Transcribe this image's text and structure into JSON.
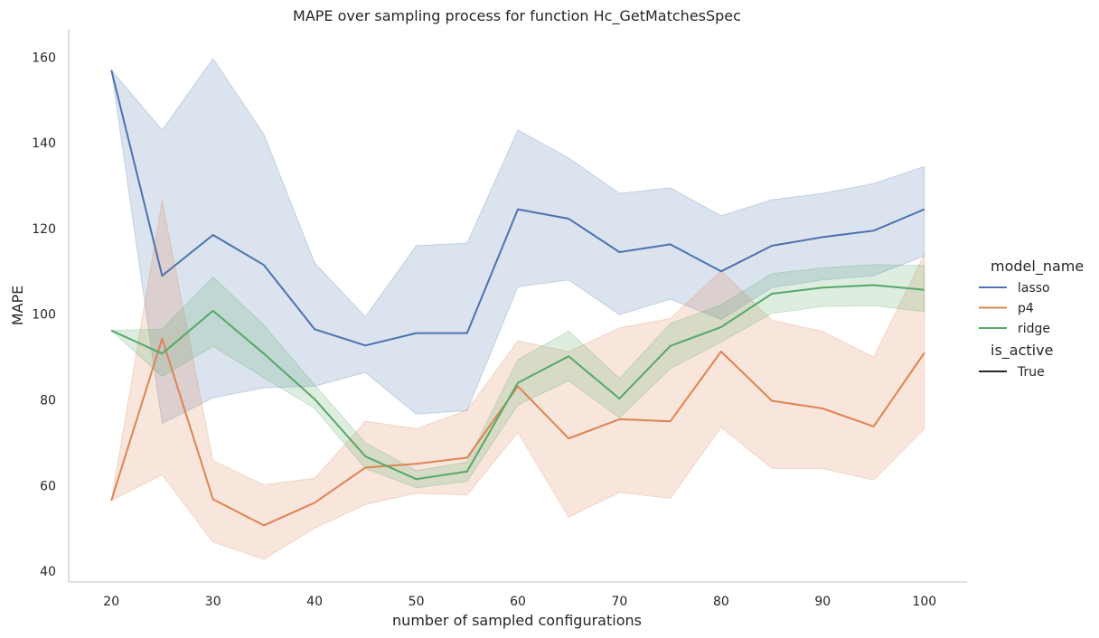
{
  "chart_data": {
    "type": "line",
    "title": "MAPE over sampling process for function Hc_GetMatchesSpec",
    "xlabel": "number of sampled configurations",
    "ylabel": "MAPE",
    "x": [
      20,
      25,
      30,
      35,
      40,
      45,
      50,
      55,
      60,
      65,
      70,
      75,
      80,
      85,
      90,
      95,
      100
    ],
    "xticks": [
      20,
      30,
      40,
      50,
      60,
      70,
      80,
      90,
      100
    ],
    "yticks": [
      40,
      60,
      80,
      100,
      120,
      140,
      160
    ],
    "xlim": [
      15.8,
      104.2
    ],
    "ylim": [
      37.5,
      166.6
    ],
    "grid": false,
    "legend_position": "right",
    "series": [
      {
        "name": "lasso",
        "color": "#4c72b0",
        "values": [
          157,
          109,
          118.5,
          111.5,
          96.5,
          92.7,
          95.6,
          95.6,
          124.5,
          122.3,
          114.5,
          116.3,
          110,
          116,
          118,
          119.5,
          124.5
        ],
        "ci_low": [
          157,
          74.5,
          80.5,
          82.8,
          83.2,
          86.4,
          76.7,
          77.5,
          106.4,
          108,
          99.9,
          103.5,
          98.8,
          106.2,
          108,
          109,
          113.6
        ],
        "ci_high": [
          157,
          143,
          159.7,
          142,
          112,
          99.4,
          116,
          116.6,
          143,
          136.5,
          128.2,
          129.5,
          123,
          126.7,
          128.2,
          130.5,
          134.5
        ]
      },
      {
        "name": "p4",
        "color": "#dd8452",
        "values": [
          56.5,
          94.3,
          56.8,
          50.7,
          56,
          64.2,
          65.1,
          66.5,
          83.2,
          71,
          75.5,
          75,
          91.3,
          79.8,
          78,
          73.8,
          91
        ],
        "ci_low": [
          56.5,
          62.5,
          46.8,
          42.8,
          50,
          55.6,
          58.2,
          57.8,
          72.4,
          52.6,
          58.4,
          57,
          73.6,
          64,
          64,
          61.3,
          73.3
        ],
        "ci_high": [
          56.5,
          126.5,
          65.8,
          60.2,
          61.7,
          75,
          73.3,
          77.6,
          93.8,
          91.3,
          96.8,
          99,
          110.2,
          98.6,
          96,
          90,
          114
        ]
      },
      {
        "name": "ridge",
        "color": "#55a868",
        "values": [
          96.2,
          90.8,
          100.8,
          90.8,
          80.2,
          66.8,
          61.5,
          63.3,
          84,
          90.2,
          80.3,
          92.6,
          97,
          104.8,
          106.2,
          106.8,
          105.7
        ],
        "ci_low": [
          96.2,
          85.5,
          92.5,
          85.2,
          78,
          64,
          59.5,
          61,
          78.8,
          84.5,
          75.8,
          87.3,
          93.5,
          100.2,
          101.8,
          102,
          100.6
        ],
        "ci_high": [
          96.2,
          96.5,
          108.7,
          97.5,
          83.5,
          70,
          63.5,
          65.5,
          89.4,
          96.1,
          85,
          97.8,
          102.2,
          109.5,
          110.8,
          111.6,
          111.4
        ]
      }
    ],
    "legend": {
      "hue_title": "model_name",
      "style_title": "is_active",
      "style_entries": [
        {
          "label": "True",
          "color": "#262626"
        }
      ]
    }
  }
}
